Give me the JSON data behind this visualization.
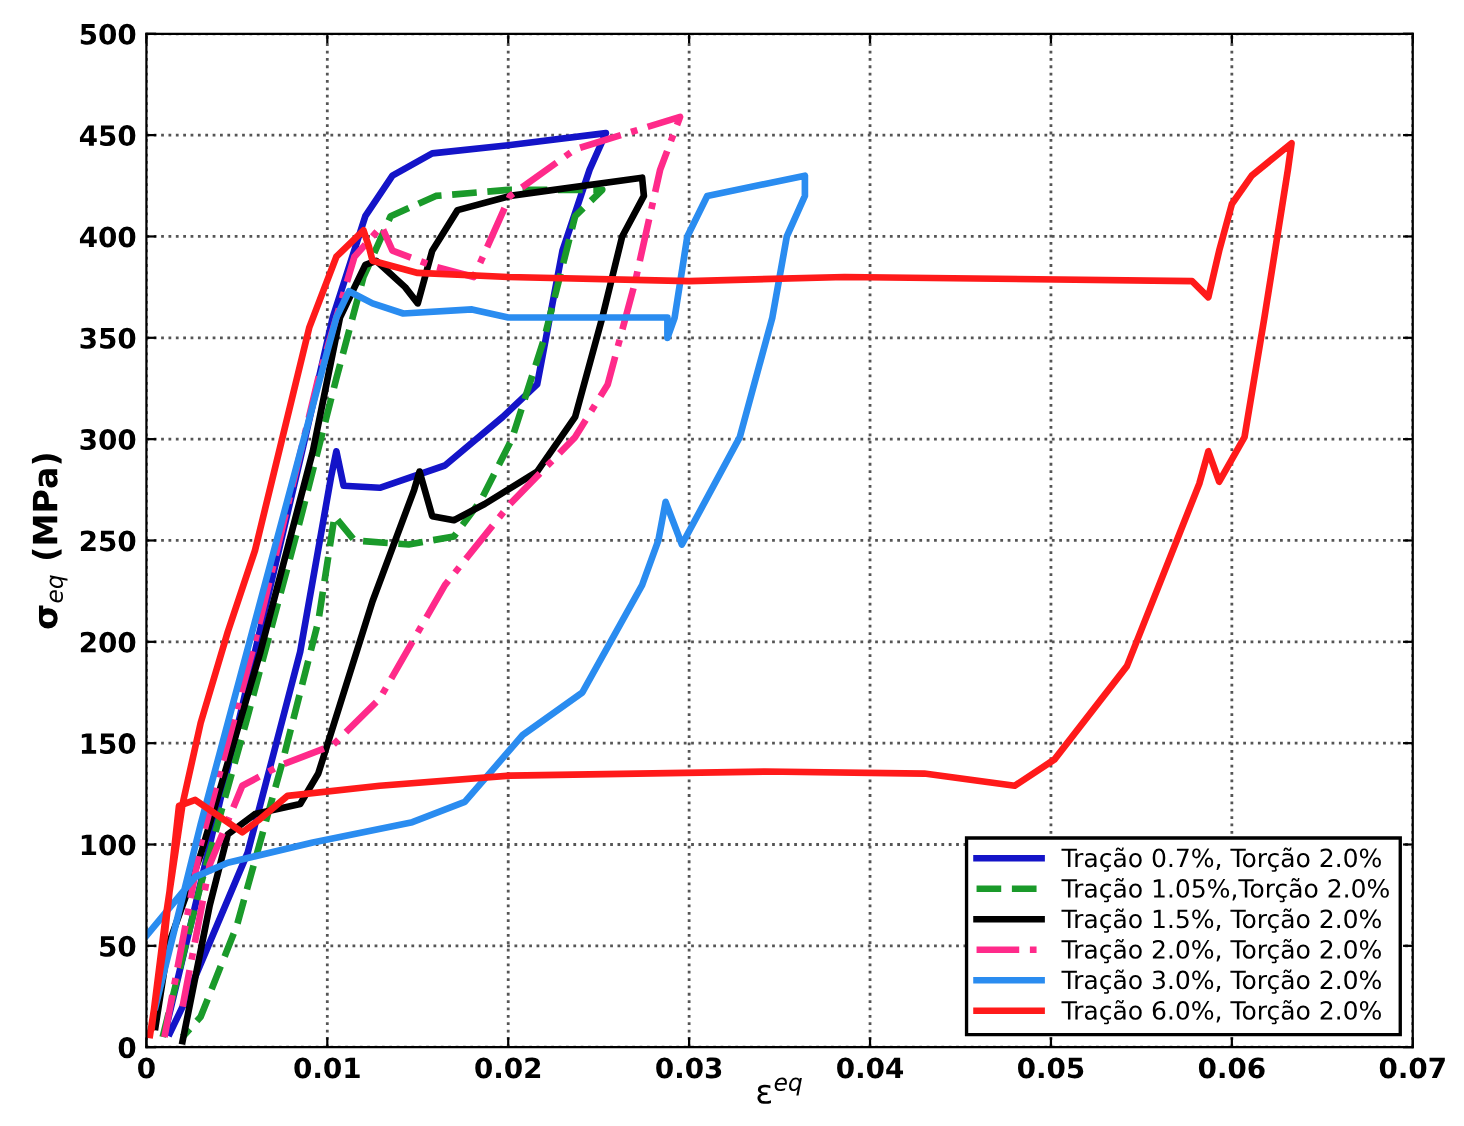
{
  "chart_data": {
    "type": "line",
    "xlabel": "ε$^{eq}$",
    "ylabel": "σ$_{eq}$ (MPa)",
    "xlim": [
      0,
      0.07
    ],
    "ylim": [
      0,
      500
    ],
    "xticks": [
      0,
      0.01,
      0.02,
      0.03,
      0.04,
      0.05,
      0.06,
      0.07
    ],
    "yticks": [
      0,
      50,
      100,
      150,
      200,
      250,
      300,
      350,
      400,
      450,
      500
    ],
    "grid": true,
    "legend": "bottom right",
    "marker": "none",
    "series": [
      {
        "name": "Tração 0.7%, Torção 2.0%",
        "color": "#1414c8",
        "line_style": "solid",
        "x": [
          0.0011,
          0.0034,
          0.006,
          0.0085,
          0.0103,
          0.0121,
          0.0136,
          0.0158,
          0.02,
          0.0254,
          0.0245,
          0.023,
          0.0216,
          0.0197,
          0.0165,
          0.0129,
          0.0109,
          0.0105,
          0.0102,
          0.0085,
          0.0056,
          0.002,
          0.0013
        ],
        "values": [
          10,
          96,
          195,
          290,
          360,
          410,
          430,
          441,
          445,
          451,
          433,
          393,
          327,
          311,
          287,
          276,
          277,
          294,
          281,
          195,
          96,
          20,
          7
        ]
      },
      {
        "name": "Tração 1.05%,Torção 2.0%",
        "color": "#1a9a2a",
        "line_style": "dashed",
        "x": [
          0.0009,
          0.003,
          0.0055,
          0.0085,
          0.0105,
          0.012,
          0.0135,
          0.016,
          0.02,
          0.0252,
          0.0237,
          0.022,
          0.0202,
          0.0185,
          0.017,
          0.0145,
          0.0115,
          0.0104,
          0.0095,
          0.0075,
          0.005,
          0.003,
          0.002
        ],
        "values": [
          5,
          80,
          160,
          260,
          330,
          380,
          410,
          420,
          423,
          423,
          410,
          350,
          300,
          270,
          252,
          248,
          250,
          262,
          210,
          140,
          60,
          15,
          5
        ]
      },
      {
        "name": "Tração 1.5%, Torção 2.0%",
        "color": "#000000",
        "line_style": "solid",
        "x": [
          0.002,
          0.0035,
          0.0045,
          0.006,
          0.0085,
          0.0095,
          0.0125,
          0.0148,
          0.0151,
          0.0158,
          0.017,
          0.0187,
          0.0216,
          0.0237,
          0.0252,
          0.0263,
          0.0275,
          0.0274,
          0.0201,
          0.0172,
          0.0158,
          0.015,
          0.0143,
          0.0127,
          0.0121,
          0.0107,
          0.0092,
          0.0063,
          0.003,
          0.0012,
          0.0005
        ],
        "values": [
          3,
          70,
          105,
          115,
          120,
          135,
          220,
          275,
          284,
          262,
          260,
          268,
          284,
          311,
          360,
          400,
          420,
          429,
          420,
          413,
          393,
          367,
          375,
          388,
          386,
          360,
          294,
          195,
          95,
          50,
          10
        ]
      },
      {
        "name": "Tração 2.0%, Torção 2.0%",
        "color": "#ff2a8a",
        "line_style": "dashdot",
        "x": [
          0.001,
          0.003,
          0.006,
          0.0095,
          0.0115,
          0.013,
          0.0136,
          0.016,
          0.0181,
          0.0201,
          0.0237,
          0.0295,
          0.0284,
          0.027,
          0.0255,
          0.0237,
          0.0201,
          0.0165,
          0.0129,
          0.0103,
          0.0074,
          0.0053,
          0.0035,
          0.002
        ],
        "values": [
          5,
          100,
          200,
          330,
          390,
          405,
          393,
          385,
          380,
          420,
          443,
          459,
          433,
          377,
          327,
          301,
          268,
          228,
          172,
          149,
          139,
          129,
          90,
          20
        ]
      },
      {
        "name": "Tração 3.0%, Torção 2.0%",
        "color": "#2a8cf0",
        "line_style": "solid",
        "x": [
          0.0005,
          0.003,
          0.006,
          0.009,
          0.0105,
          0.0112,
          0.0125,
          0.0142,
          0.018,
          0.02,
          0.025,
          0.0288,
          0.0288,
          0.0292,
          0.0299,
          0.031,
          0.0364,
          0.0364,
          0.0354,
          0.0346,
          0.0328,
          0.0296,
          0.0287,
          0.0283,
          0.0274,
          0.0241,
          0.0208,
          0.0176,
          0.0147,
          0.0092,
          0.0045,
          0.0027,
          0
        ],
        "values": [
          20,
          110,
          210,
          310,
          360,
          373,
          367,
          362,
          364,
          360,
          360,
          360,
          350,
          360,
          400,
          420,
          430,
          420,
          400,
          360,
          301,
          248,
          269,
          250,
          228,
          175,
          154,
          121,
          111,
          101,
          91,
          84,
          55
        ]
      },
      {
        "name": "Tração 6.0%, Torção 2.0%",
        "color": "#ff1a1a",
        "line_style": "solid",
        "x": [
          0.0003,
          0.001,
          0.002,
          0.003,
          0.0045,
          0.006,
          0.0075,
          0.009,
          0.0105,
          0.012,
          0.0123,
          0.0125,
          0.015,
          0.02,
          0.03,
          0.0386,
          0.0578,
          0.0587,
          0.0593,
          0.06,
          0.0611,
          0.0633,
          0.0631,
          0.0618,
          0.0607,
          0.0593,
          0.0587,
          0.0582,
          0.0542,
          0.0502,
          0.048,
          0.043,
          0.0342,
          0.0201,
          0.0129,
          0.0078,
          0.0062,
          0.0053,
          0.0027,
          0.0018,
          0.0009,
          0.0002
        ],
        "values": [
          10,
          60,
          120,
          160,
          205,
          245,
          300,
          355,
          390,
          403,
          395,
          388,
          382,
          380,
          378,
          380,
          378,
          370,
          393,
          416,
          430,
          446,
          433,
          360,
          301,
          279,
          294,
          278,
          188,
          142,
          129,
          135,
          136,
          134,
          129,
          124,
          112,
          106,
          122,
          119,
          46,
          6
        ]
      }
    ]
  }
}
